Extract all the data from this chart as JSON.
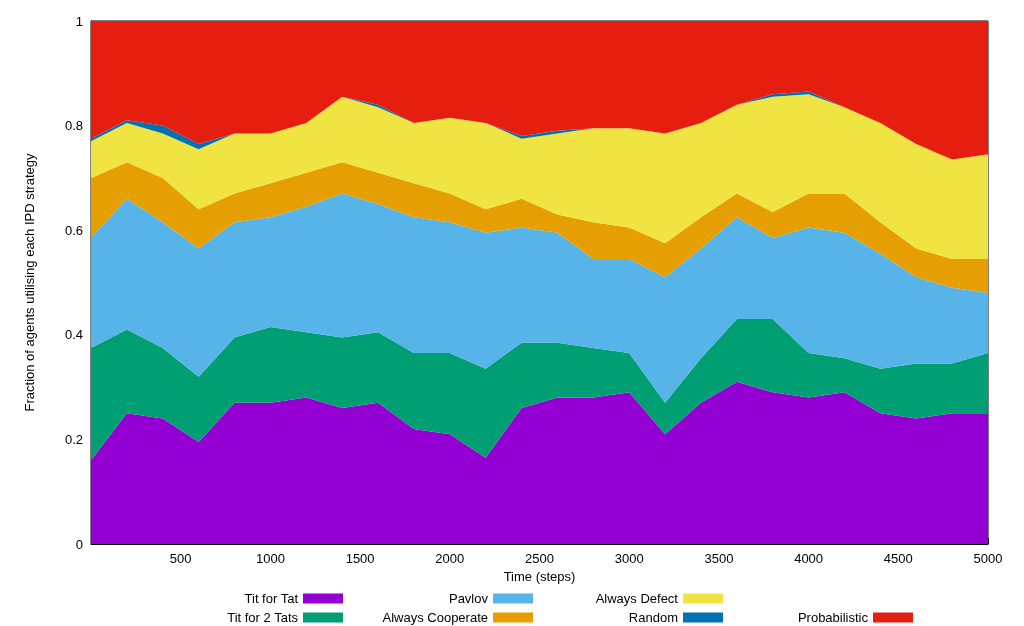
{
  "chart_data": {
    "type": "area",
    "stacked": true,
    "xlabel": "Time (steps)",
    "ylabel": "Fraction of agents utilising each IPD strategy",
    "x": [
      0,
      200,
      400,
      600,
      800,
      1000,
      1200,
      1400,
      1600,
      1800,
      2000,
      2200,
      2400,
      2600,
      2800,
      3000,
      3200,
      3400,
      3600,
      3800,
      4000,
      4200,
      4400,
      4600,
      4800,
      5000
    ],
    "xlim": [
      0,
      5000
    ],
    "xticks": [
      500,
      1000,
      1500,
      2000,
      2500,
      3000,
      3500,
      4000,
      4500,
      5000
    ],
    "ylim": [
      0,
      1
    ],
    "yticks": [
      0,
      0.2,
      0.4,
      0.6,
      0.8,
      1
    ],
    "grid": false,
    "legend": "bottom",
    "series": [
      {
        "name": "Tit for Tat",
        "color": "#9400d3",
        "values": [
          0.16,
          0.25,
          0.24,
          0.195,
          0.27,
          0.27,
          0.28,
          0.26,
          0.27,
          0.22,
          0.21,
          0.165,
          0.26,
          0.28,
          0.28,
          0.29,
          0.21,
          0.27,
          0.31,
          0.29,
          0.28,
          0.29,
          0.25,
          0.24,
          0.25,
          0.25
        ]
      },
      {
        "name": "Tit for 2 Tats",
        "color": "#009e73",
        "values": [
          0.215,
          0.16,
          0.135,
          0.125,
          0.125,
          0.145,
          0.125,
          0.135,
          0.135,
          0.145,
          0.155,
          0.17,
          0.125,
          0.105,
          0.095,
          0.075,
          0.06,
          0.085,
          0.12,
          0.14,
          0.085,
          0.065,
          0.085,
          0.105,
          0.095,
          0.115
        ]
      },
      {
        "name": "Pavlov",
        "color": "#56b4e9",
        "values": [
          0.21,
          0.25,
          0.24,
          0.245,
          0.22,
          0.21,
          0.24,
          0.275,
          0.245,
          0.26,
          0.25,
          0.26,
          0.22,
          0.21,
          0.17,
          0.18,
          0.24,
          0.21,
          0.195,
          0.155,
          0.24,
          0.24,
          0.22,
          0.165,
          0.145,
          0.115
        ]
      },
      {
        "name": "Always Cooperate",
        "color": "#e69f00",
        "values": [
          0.115,
          0.07,
          0.085,
          0.075,
          0.055,
          0.065,
          0.065,
          0.06,
          0.06,
          0.065,
          0.055,
          0.045,
          0.055,
          0.035,
          0.07,
          0.06,
          0.065,
          0.06,
          0.045,
          0.05,
          0.065,
          0.075,
          0.06,
          0.055,
          0.055,
          0.065
        ]
      },
      {
        "name": "Always Defect",
        "color": "#f0e442",
        "values": [
          0.07,
          0.075,
          0.085,
          0.115,
          0.115,
          0.095,
          0.095,
          0.125,
          0.125,
          0.115,
          0.145,
          0.165,
          0.115,
          0.155,
          0.18,
          0.19,
          0.21,
          0.18,
          0.17,
          0.22,
          0.19,
          0.165,
          0.19,
          0.2,
          0.19,
          0.2
        ]
      },
      {
        "name": "Random",
        "color": "#0072b2",
        "values": [
          0.005,
          0.005,
          0.015,
          0.01,
          0,
          0,
          0,
          0,
          0.005,
          0,
          0,
          0,
          0.005,
          0.005,
          0,
          0,
          0,
          0,
          0,
          0.005,
          0.005,
          0,
          0,
          0,
          0,
          0
        ]
      },
      {
        "name": "Probabilistic",
        "color": "#e51e10",
        "values": [
          0.225,
          0.19,
          0.2,
          0.235,
          0.215,
          0.215,
          0.195,
          0.145,
          0.16,
          0.195,
          0.185,
          0.195,
          0.22,
          0.21,
          0.205,
          0.205,
          0.215,
          0.195,
          0.16,
          0.14,
          0.135,
          0.165,
          0.195,
          0.235,
          0.265,
          0.255
        ]
      }
    ]
  }
}
